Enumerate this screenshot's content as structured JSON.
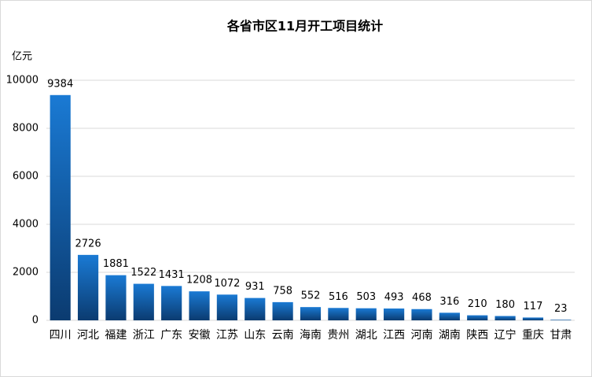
{
  "chart_data": {
    "type": "bar",
    "title": "各省市区11月开工项目统计",
    "y_axis_label": "亿元",
    "categories": [
      "四川",
      "河北",
      "福建",
      "浙江",
      "广东",
      "安徽",
      "江苏",
      "山东",
      "云南",
      "海南",
      "贵州",
      "湖北",
      "江西",
      "河南",
      "湖南",
      "陕西",
      "辽宁",
      "重庆",
      "甘肃"
    ],
    "values": [
      9384,
      2726,
      1881,
      1522,
      1431,
      1208,
      1072,
      931,
      758,
      552,
      516,
      503,
      493,
      468,
      316,
      210,
      180,
      117,
      23
    ],
    "color": "#1a7ad4",
    "ylim": [
      0,
      10000
    ],
    "yticks": [
      0,
      2000,
      4000,
      6000,
      8000,
      10000
    ],
    "grid": true
  }
}
